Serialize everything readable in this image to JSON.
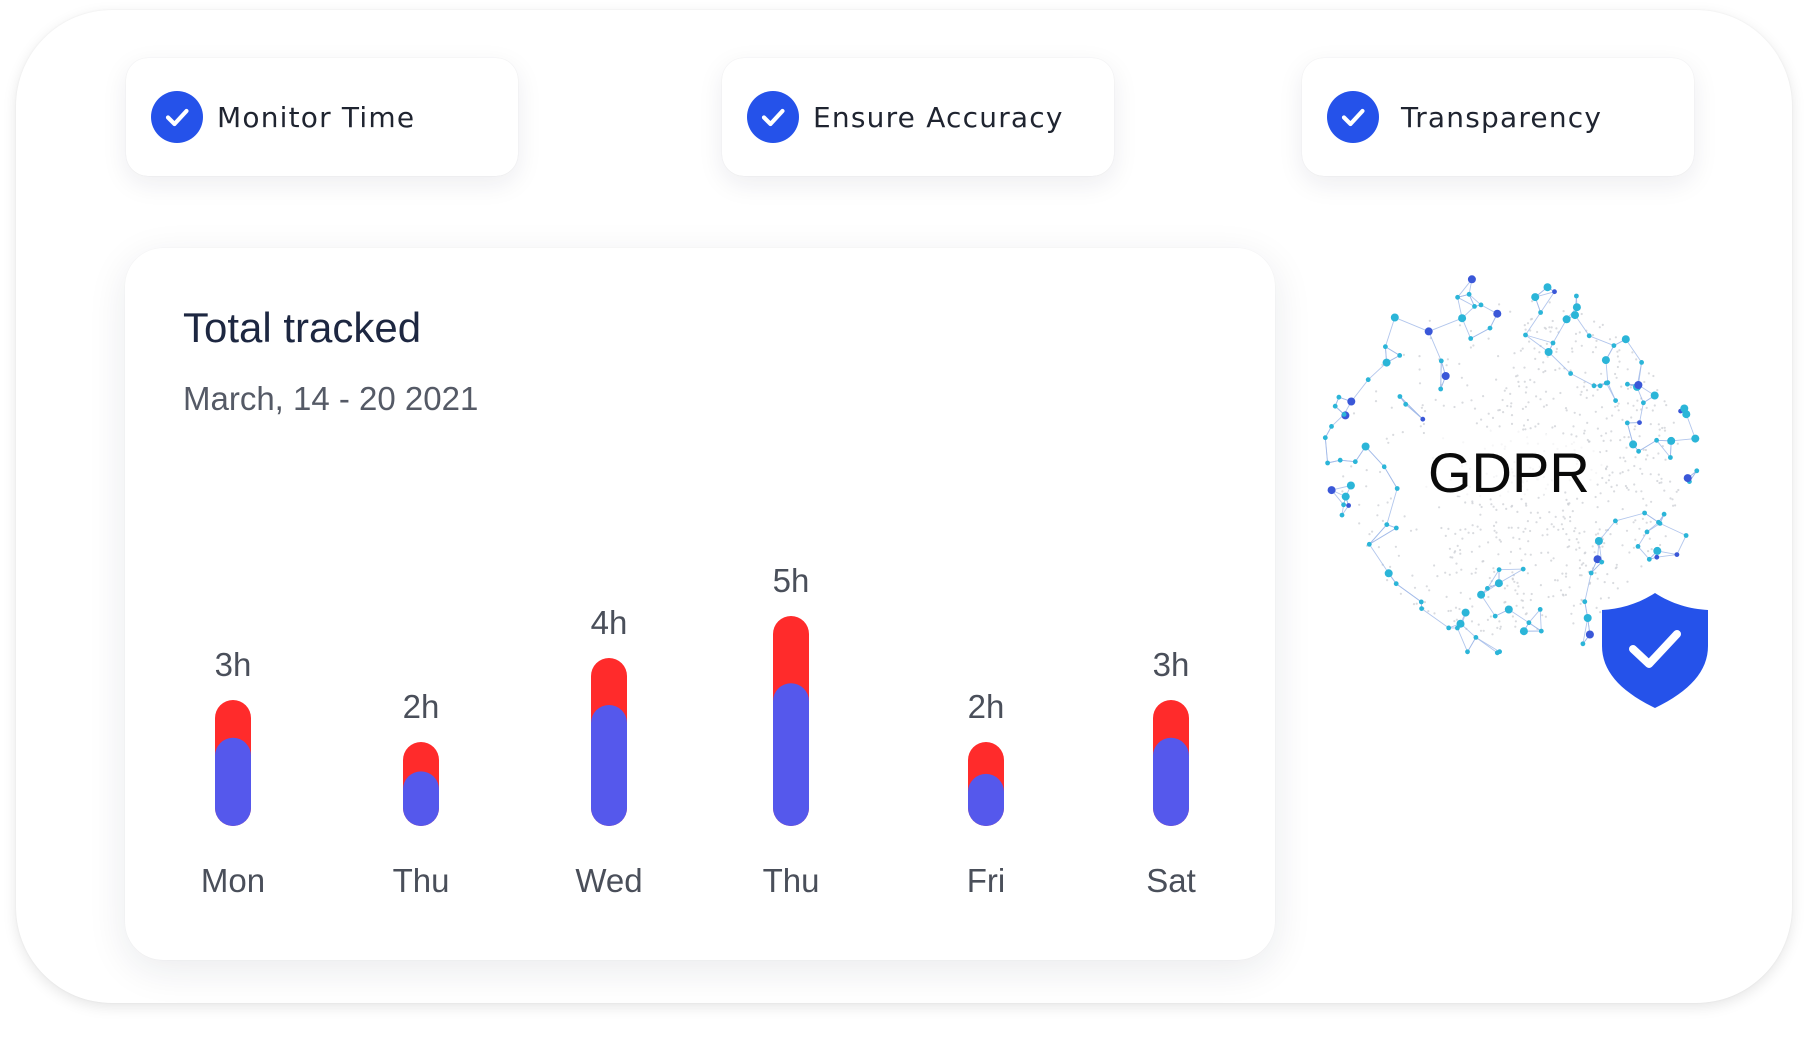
{
  "features": [
    {
      "label": "Monitor Time",
      "icon": "check-circle-icon"
    },
    {
      "label": "Ensure Accuracy",
      "icon": "check-circle-icon"
    },
    {
      "label": "Transparency",
      "icon": "check-circle-icon"
    }
  ],
  "chart": {
    "title": "Total tracked",
    "subtitle": "March, 14 - 20 2021"
  },
  "chart_data": {
    "type": "bar",
    "stacked": true,
    "categories": [
      "Mon",
      "Thu",
      "Wed",
      "Thu",
      "Fri",
      "Sat"
    ],
    "data_labels": [
      "3h",
      "2h",
      "4h",
      "5h",
      "2h",
      "3h"
    ],
    "values": [
      3,
      2,
      4,
      5,
      2,
      3
    ],
    "split_fraction": [
      0.7,
      0.65,
      0.72,
      0.68,
      0.62,
      0.7
    ],
    "colors": {
      "lower": "#5558ec",
      "upper": "#ff2b2b"
    },
    "grid": false,
    "legend": "none"
  },
  "badge": {
    "label": "GDPR",
    "icons": [
      "globe-network-icon",
      "shield-check-icon"
    ],
    "shield_color": "#2552ea",
    "node_color": "#2bb5d8"
  }
}
